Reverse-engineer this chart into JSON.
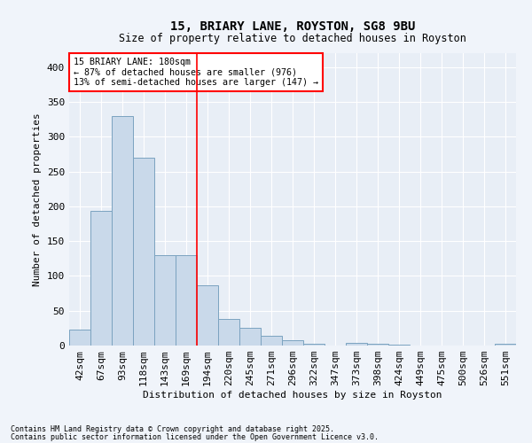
{
  "title": "15, BRIARY LANE, ROYSTON, SG8 9BU",
  "subtitle": "Size of property relative to detached houses in Royston",
  "xlabel": "Distribution of detached houses by size in Royston",
  "ylabel": "Number of detached properties",
  "bar_color": "#c9d9ea",
  "bar_edge_color": "#7ba3c0",
  "bg_color": "#e8eef6",
  "grid_color": "#ffffff",
  "annotation_line_bin": 5,
  "annotation_text_line1": "15 BRIARY LANE: 180sqm",
  "annotation_text_line2": "← 87% of detached houses are smaller (976)",
  "annotation_text_line3": "13% of semi-detached houses are larger (147) →",
  "footnote1": "Contains HM Land Registry data © Crown copyright and database right 2025.",
  "footnote2": "Contains public sector information licensed under the Open Government Licence v3.0.",
  "categories": [
    "42sqm",
    "67sqm",
    "93sqm",
    "118sqm",
    "143sqm",
    "169sqm",
    "194sqm",
    "220sqm",
    "245sqm",
    "271sqm",
    "296sqm",
    "322sqm",
    "347sqm",
    "373sqm",
    "398sqm",
    "424sqm",
    "449sqm",
    "475sqm",
    "500sqm",
    "526sqm",
    "551sqm"
  ],
  "values": [
    23,
    193,
    330,
    270,
    130,
    130,
    86,
    38,
    25,
    14,
    8,
    3,
    0,
    4,
    2,
    1,
    0,
    0,
    0,
    0,
    2
  ],
  "ylim": [
    0,
    420
  ],
  "yticks": [
    0,
    50,
    100,
    150,
    200,
    250,
    300,
    350,
    400
  ],
  "fig_bg": "#f0f4fa"
}
